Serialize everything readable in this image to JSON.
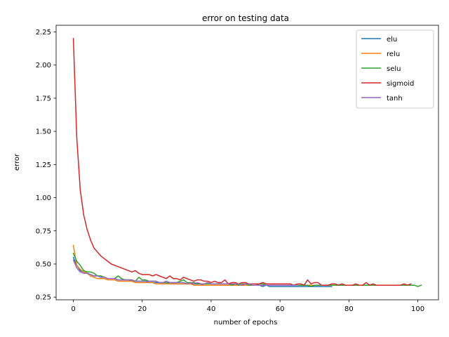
{
  "chart_data": {
    "type": "line",
    "title": "error on testing data",
    "xlabel": "number of epochs",
    "ylabel": "error",
    "xlim": [
      -5,
      106
    ],
    "ylim": [
      0.23,
      2.3
    ],
    "xticks": [
      0,
      20,
      40,
      60,
      80,
      100
    ],
    "yticks": [
      0.25,
      0.5,
      0.75,
      1.0,
      1.25,
      1.5,
      1.75,
      2.0,
      2.25
    ],
    "ytick_labels": [
      "0.25",
      "0.50",
      "0.75",
      "1.00",
      "1.25",
      "1.50",
      "1.75",
      "2.00",
      "2.25"
    ],
    "grid": false,
    "legend_position": "top-right",
    "series": [
      {
        "name": "elu",
        "color": "#1f77b4",
        "values": [
          0.55,
          0.49,
          0.45,
          0.44,
          0.43,
          0.42,
          0.41,
          0.41,
          0.4,
          0.4,
          0.39,
          0.39,
          0.39,
          0.38,
          0.38,
          0.38,
          0.38,
          0.37,
          0.37,
          0.37,
          0.37,
          0.37,
          0.36,
          0.36,
          0.36,
          0.36,
          0.36,
          0.36,
          0.35,
          0.35,
          0.35,
          0.35,
          0.35,
          0.35,
          0.35,
          0.35,
          0.35,
          0.35,
          0.34,
          0.34,
          0.34,
          0.34,
          0.34,
          0.34,
          0.34,
          0.34,
          0.34,
          0.34,
          0.34,
          0.34,
          0.34,
          0.34,
          0.34,
          0.34,
          0.34,
          0.33,
          0.34,
          0.33,
          0.33,
          0.33,
          0.33,
          0.33,
          0.33,
          0.33,
          0.33,
          0.33,
          0.33,
          0.33,
          0.33,
          0.33,
          0.33,
          0.33,
          0.33,
          0.33,
          0.33,
          0.33
        ]
      },
      {
        "name": "relu",
        "color": "#ff7f0e",
        "values": [
          0.64,
          0.49,
          0.46,
          0.44,
          0.43,
          0.41,
          0.4,
          0.39,
          0.39,
          0.39,
          0.38,
          0.38,
          0.38,
          0.37,
          0.37,
          0.37,
          0.37,
          0.37,
          0.36,
          0.36,
          0.36,
          0.36,
          0.36,
          0.36,
          0.35,
          0.35,
          0.35,
          0.35,
          0.35,
          0.35,
          0.35,
          0.35,
          0.35,
          0.35,
          0.35,
          0.34,
          0.34,
          0.34,
          0.34,
          0.34,
          0.34,
          0.34,
          0.34,
          0.34,
          0.34,
          0.34,
          0.34,
          0.34,
          0.34,
          0.34,
          0.34,
          0.34,
          0.34,
          0.34,
          0.34,
          0.34,
          0.34,
          0.34,
          0.34,
          0.34,
          0.34,
          0.34,
          0.34,
          0.34,
          0.34,
          0.34,
          0.34,
          0.34,
          0.34,
          0.34,
          0.34,
          0.34,
          0.34,
          0.34,
          0.34,
          0.34,
          0.34,
          0.34,
          0.34,
          0.34,
          0.34,
          0.34,
          0.34,
          0.34,
          0.34,
          0.34,
          0.34,
          0.34,
          0.34,
          0.34,
          0.34,
          0.34,
          0.34,
          0.34,
          0.34,
          0.34,
          0.34,
          0.34
        ]
      },
      {
        "name": "selu",
        "color": "#2ca02c",
        "values": [
          0.58,
          0.52,
          0.49,
          0.45,
          0.44,
          0.44,
          0.43,
          0.41,
          0.41,
          0.4,
          0.39,
          0.39,
          0.39,
          0.41,
          0.39,
          0.38,
          0.38,
          0.38,
          0.37,
          0.4,
          0.38,
          0.38,
          0.37,
          0.37,
          0.37,
          0.36,
          0.36,
          0.36,
          0.36,
          0.36,
          0.36,
          0.37,
          0.38,
          0.36,
          0.36,
          0.36,
          0.35,
          0.35,
          0.35,
          0.35,
          0.35,
          0.35,
          0.35,
          0.35,
          0.35,
          0.35,
          0.34,
          0.35,
          0.34,
          0.35,
          0.35,
          0.34,
          0.34,
          0.34,
          0.35,
          0.35,
          0.34,
          0.34,
          0.34,
          0.34,
          0.34,
          0.34,
          0.34,
          0.34,
          0.34,
          0.34,
          0.34,
          0.34,
          0.34,
          0.33,
          0.34,
          0.34,
          0.34,
          0.34,
          0.34,
          0.34,
          0.34,
          0.34,
          0.34,
          0.34,
          0.34,
          0.34,
          0.34,
          0.34,
          0.34,
          0.34,
          0.34,
          0.34,
          0.34,
          0.34,
          0.34,
          0.34,
          0.34,
          0.34,
          0.34,
          0.34,
          0.34,
          0.34,
          0.34,
          0.34,
          0.33,
          0.34
        ]
      },
      {
        "name": "sigmoid",
        "color": "#d62728",
        "values": [
          2.2,
          1.45,
          1.06,
          0.87,
          0.76,
          0.68,
          0.62,
          0.59,
          0.56,
          0.54,
          0.52,
          0.5,
          0.49,
          0.48,
          0.47,
          0.46,
          0.45,
          0.44,
          0.45,
          0.43,
          0.42,
          0.42,
          0.42,
          0.41,
          0.42,
          0.41,
          0.4,
          0.39,
          0.41,
          0.39,
          0.39,
          0.38,
          0.4,
          0.39,
          0.38,
          0.37,
          0.38,
          0.38,
          0.37,
          0.37,
          0.36,
          0.37,
          0.36,
          0.36,
          0.38,
          0.35,
          0.36,
          0.36,
          0.35,
          0.36,
          0.36,
          0.35,
          0.35,
          0.35,
          0.35,
          0.36,
          0.35,
          0.35,
          0.35,
          0.35,
          0.35,
          0.35,
          0.35,
          0.35,
          0.34,
          0.35,
          0.35,
          0.34,
          0.38,
          0.35,
          0.36,
          0.36,
          0.34,
          0.34,
          0.34,
          0.35,
          0.35,
          0.34,
          0.35,
          0.34,
          0.34,
          0.34,
          0.35,
          0.34,
          0.34,
          0.36,
          0.34,
          0.35,
          0.34,
          0.34,
          0.34,
          0.34,
          0.34,
          0.34,
          0.34,
          0.34,
          0.35,
          0.34,
          0.35
        ]
      },
      {
        "name": "tanh",
        "color": "#9467bd",
        "values": [
          0.53,
          0.47,
          0.44,
          0.43,
          0.43,
          0.42,
          0.41,
          0.41,
          0.4,
          0.4,
          0.39,
          0.39,
          0.39,
          0.38,
          0.38,
          0.38,
          0.38,
          0.38,
          0.37,
          0.37,
          0.37,
          0.37,
          0.37,
          0.37,
          0.37,
          0.36,
          0.36,
          0.37,
          0.36,
          0.36,
          0.36,
          0.36,
          0.36,
          0.35,
          0.36,
          0.35,
          0.36,
          0.35,
          0.35,
          0.36,
          0.35,
          0.35,
          0.35,
          0.35,
          0.35,
          0.35,
          0.35,
          0.35,
          0.35,
          0.34,
          0.35,
          0.35,
          0.34,
          0.34,
          0.34,
          0.34,
          0.34,
          0.34,
          0.34,
          0.34,
          0.34,
          0.34,
          0.34,
          0.34,
          0.34,
          0.34
        ]
      }
    ]
  }
}
